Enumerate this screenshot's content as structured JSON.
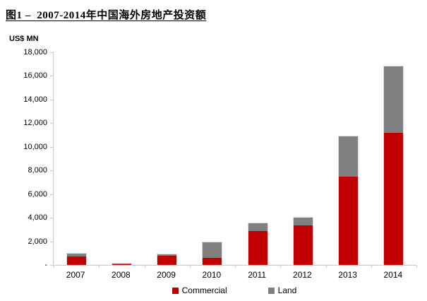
{
  "figure": {
    "title": "图1 –  2007-2014年中国海外房地产投资额"
  },
  "chart_data": {
    "type": "bar",
    "stacked": true,
    "title": "图1 – 2007-2014年中国海外房地产投资额",
    "y_unit": "US$ MN",
    "xlabel": "",
    "ylabel": "US$ MN",
    "categories": [
      "2007",
      "2008",
      "2009",
      "2010",
      "2011",
      "2012",
      "2013",
      "2014"
    ],
    "series": [
      {
        "name": "Commercial",
        "color": "#C00000",
        "values": [
          700,
          50,
          750,
          600,
          2900,
          3350,
          7500,
          11200
        ]
      },
      {
        "name": "Land",
        "color": "#808080",
        "values": [
          250,
          50,
          150,
          1300,
          650,
          650,
          3400,
          5600
        ]
      }
    ],
    "totals": [
      950,
      100,
      900,
      1900,
      3550,
      4000,
      10900,
      16800
    ],
    "ylim": [
      0,
      18000
    ],
    "y_ticks": [
      {
        "value": 0,
        "label": "-"
      },
      {
        "value": 2000,
        "label": "2,000"
      },
      {
        "value": 4000,
        "label": "4,000"
      },
      {
        "value": 6000,
        "label": "6,000"
      },
      {
        "value": 8000,
        "label": "8,000"
      },
      {
        "value": 10000,
        "label": "10,000"
      },
      {
        "value": 12000,
        "label": "12,000"
      },
      {
        "value": 14000,
        "label": "14,000"
      },
      {
        "value": 16000,
        "label": "16,000"
      },
      {
        "value": 18000,
        "label": "18,000"
      }
    ],
    "grid": false,
    "legend_position": "bottom"
  },
  "colors": {
    "commercial": "#C00000",
    "land": "#808080",
    "axis": "#c9c9c9",
    "text": "#000000"
  }
}
